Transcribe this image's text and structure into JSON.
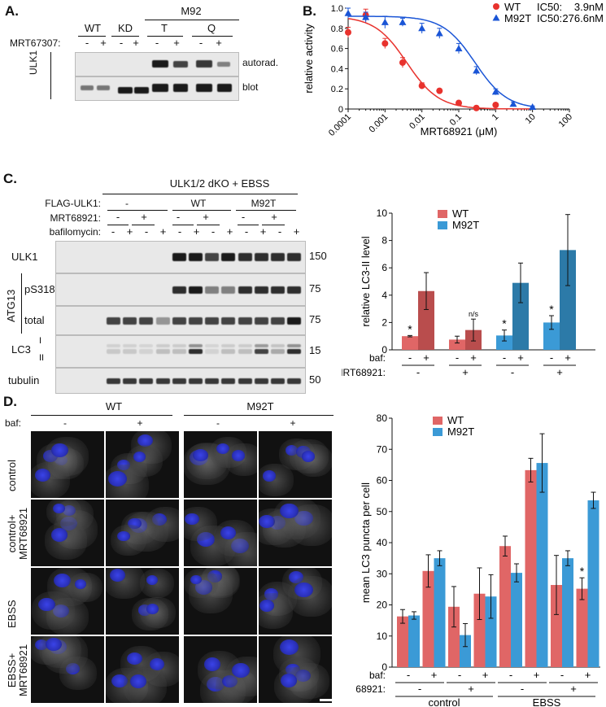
{
  "panel_labels": {
    "a": "A.",
    "b": "B.",
    "c": "C.",
    "d": "D."
  },
  "panel_a": {
    "group_label": "M92",
    "lane_groups": [
      "WT",
      "KD",
      "T",
      "Q"
    ],
    "treatment_label": "MRT67307:",
    "lane_signs": [
      "-",
      "+",
      "-",
      "+",
      "-",
      "+",
      "-",
      "+"
    ],
    "protein_label": "ULK1",
    "row_labels": [
      "autorad.",
      "blot"
    ]
  },
  "panel_c": {
    "condition": "ULK1/2 dKO + EBSS",
    "row_labels": [
      "FLAG-ULK1:",
      "MRT68921:",
      "bafilomycin:"
    ],
    "flag_groups": [
      "-",
      "WT",
      "M92T"
    ],
    "mrt_signs": [
      "-",
      "+",
      "-",
      "+",
      "-",
      "+"
    ],
    "baf_signs": [
      "-",
      "+",
      "-",
      "+",
      "-",
      "+",
      "-",
      "+",
      "-",
      "+",
      "-",
      "+"
    ],
    "blot_labels": [
      "ULK1",
      "pS318",
      "total",
      "LC3",
      "tubulin"
    ],
    "atg_label": "ATG13",
    "lc3_forms": [
      "I",
      "II"
    ],
    "mw_markers": [
      "150",
      "75",
      "75",
      "15",
      "50"
    ]
  },
  "panel_d": {
    "genotypes": [
      "WT",
      "M92T"
    ],
    "baf_label": "baf:",
    "baf_signs": [
      "-",
      "+",
      "-",
      "+"
    ],
    "row_labels": [
      "control",
      "control+\nMRT68921",
      "EBSS",
      "EBSS+\nMRT68921"
    ]
  },
  "chart_data": [
    {
      "type": "scatter",
      "panel": "B",
      "xlabel": "MRT68921 (μM)",
      "ylabel": "relative activity",
      "xscale": "log",
      "xlim": [
        0.0001,
        100
      ],
      "ylim": [
        0,
        1.0
      ],
      "x_ticks": [
        "0.0001",
        "0.001",
        "0.01",
        "0.1",
        "1",
        "10",
        "100"
      ],
      "y_ticks": [
        "0",
        "0.2",
        "0.4",
        "0.6",
        "0.8",
        "1.0"
      ],
      "legend_position": "top-right",
      "series": [
        {
          "name": "WT",
          "ic50_label": "IC50:",
          "ic50": "3.9nM",
          "color": "#e8322d",
          "x": [
            0.0001,
            0.0003,
            0.001,
            0.003,
            0.01,
            0.03,
            0.1,
            0.3,
            1
          ],
          "y": [
            0.76,
            0.93,
            0.65,
            0.46,
            0.23,
            0.18,
            0.06,
            0.01,
            0.04
          ],
          "err": [
            0.05,
            0.06,
            0.05,
            0.05,
            0.03,
            0.02,
            0.02,
            0.01,
            0.02
          ]
        },
        {
          "name": "M92T",
          "ic50_label": "IC50:",
          "ic50": "276.6nM",
          "color": "#1a55d6",
          "x": [
            0.0001,
            0.0003,
            0.001,
            0.003,
            0.01,
            0.03,
            0.1,
            0.3,
            1,
            3,
            10
          ],
          "y": [
            0.95,
            0.91,
            0.86,
            0.86,
            0.8,
            0.75,
            0.6,
            0.38,
            0.17,
            0.05,
            0.02
          ],
          "err": [
            0.05,
            0.05,
            0.06,
            0.04,
            0.05,
            0.05,
            0.05,
            0.04,
            0.03,
            0.02,
            0.01
          ]
        }
      ]
    },
    {
      "type": "bar",
      "panel": "C",
      "ylabel": "relative LC3-II level",
      "ylim": [
        0,
        10
      ],
      "y_ticks": [
        "0",
        "2",
        "4",
        "6",
        "8",
        "10"
      ],
      "legend_position": "top-left",
      "categories": [
        "-|-",
        "+|-",
        "-|+",
        "+|+",
        "-|-",
        "+|-",
        "-|+",
        "+|+"
      ],
      "row1_label": "baf:",
      "row1_signs": [
        "-",
        "+",
        "-",
        "+",
        "-",
        "+",
        "-",
        "+"
      ],
      "row2_label": "MRT68921:",
      "row2_signs": [
        "-",
        "+",
        "-",
        "+"
      ],
      "legend": [
        {
          "name": "WT",
          "color": "#e06666"
        },
        {
          "name": "M92T",
          "color": "#3b9ad6"
        }
      ],
      "bars": [
        {
          "series": "WT",
          "color": "#e06666",
          "value": 1.0,
          "err": 0.05,
          "annot": "*"
        },
        {
          "series": "WT",
          "color": "#b94d4d",
          "value": 4.3,
          "err": 1.35,
          "annot": ""
        },
        {
          "series": "WT",
          "color": "#e06666",
          "value": 0.75,
          "err": 0.25,
          "annot": ""
        },
        {
          "series": "WT",
          "color": "#b94d4d",
          "value": 1.45,
          "err": 0.8,
          "annot": "n/s"
        },
        {
          "series": "M92T",
          "color": "#3b9ad6",
          "value": 1.05,
          "err": 0.4,
          "annot": "*"
        },
        {
          "series": "M92T",
          "color": "#2c7aa8",
          "value": 4.9,
          "err": 1.45,
          "annot": ""
        },
        {
          "series": "M92T",
          "color": "#3b9ad6",
          "value": 2.0,
          "err": 0.5,
          "annot": "*"
        },
        {
          "series": "M92T",
          "color": "#2c7aa8",
          "value": 7.3,
          "err": 2.6,
          "annot": ""
        }
      ]
    },
    {
      "type": "bar",
      "panel": "D",
      "ylabel": "mean LC3 puncta per cell",
      "ylim": [
        0,
        80
      ],
      "y_ticks": [
        "0",
        "10",
        "20",
        "30",
        "40",
        "50",
        "60",
        "70",
        "80"
      ],
      "legend": [
        {
          "name": "WT",
          "color": "#e06666"
        },
        {
          "name": "M92T",
          "color": "#3b9ad6"
        }
      ],
      "row1_label": "baf:",
      "row1_signs": [
        "-",
        "+",
        "-",
        "+",
        "-",
        "+",
        "-",
        "+"
      ],
      "row2_label": "68921:",
      "row2_signs": [
        "-",
        "+",
        "-",
        "+"
      ],
      "group_labels": [
        "control",
        "EBSS"
      ],
      "series": [
        {
          "name": "WT",
          "color": "#e06666",
          "values": [
            16.3,
            30.9,
            19.4,
            23.6,
            38.9,
            63.3,
            26.4,
            25.2
          ],
          "err": [
            2.2,
            5.2,
            6.5,
            8.3,
            3.2,
            3.8,
            9.5,
            3.5
          ]
        },
        {
          "name": "M92T",
          "color": "#3b9ad6",
          "values": [
            16.6,
            35.0,
            10.3,
            22.7,
            30.3,
            65.6,
            35.0,
            53.6
          ],
          "err": [
            1.2,
            2.4,
            3.7,
            7.0,
            2.9,
            9.4,
            2.4,
            2.6
          ]
        }
      ],
      "annotations": [
        {
          "group": 7,
          "series": "WT",
          "text": "*"
        }
      ]
    }
  ]
}
